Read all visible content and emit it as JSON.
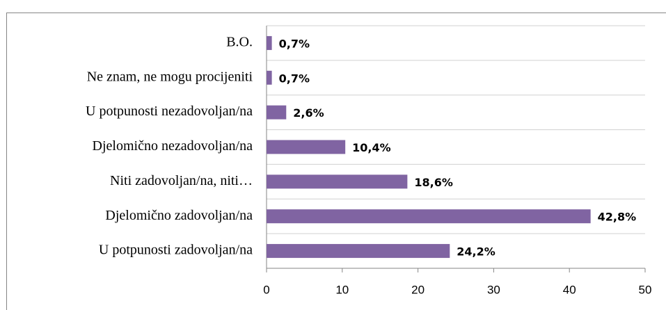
{
  "chart_data": {
    "type": "barh",
    "categories": [
      "B.O.",
      "Ne znam, ne mogu procijeniti",
      "U potpunosti nezadovoljan/na",
      "Djelomično nezadovoljan/na",
      "Niti zadovoljan/na, niti…",
      "Djelomično zadovoljan/na",
      "U potpunosti zadovoljan/na"
    ],
    "values": [
      0.7,
      0.7,
      2.6,
      10.4,
      18.6,
      42.8,
      24.2
    ],
    "value_labels": [
      "0,7%",
      "0,7%",
      "2,6%",
      "10,4%",
      "18,6%",
      "42,8%",
      "24,2%"
    ],
    "color": "#8064a2",
    "xlim": [
      0,
      50
    ],
    "xticks": [
      0,
      10,
      20,
      30,
      40,
      50
    ],
    "grid": true
  }
}
